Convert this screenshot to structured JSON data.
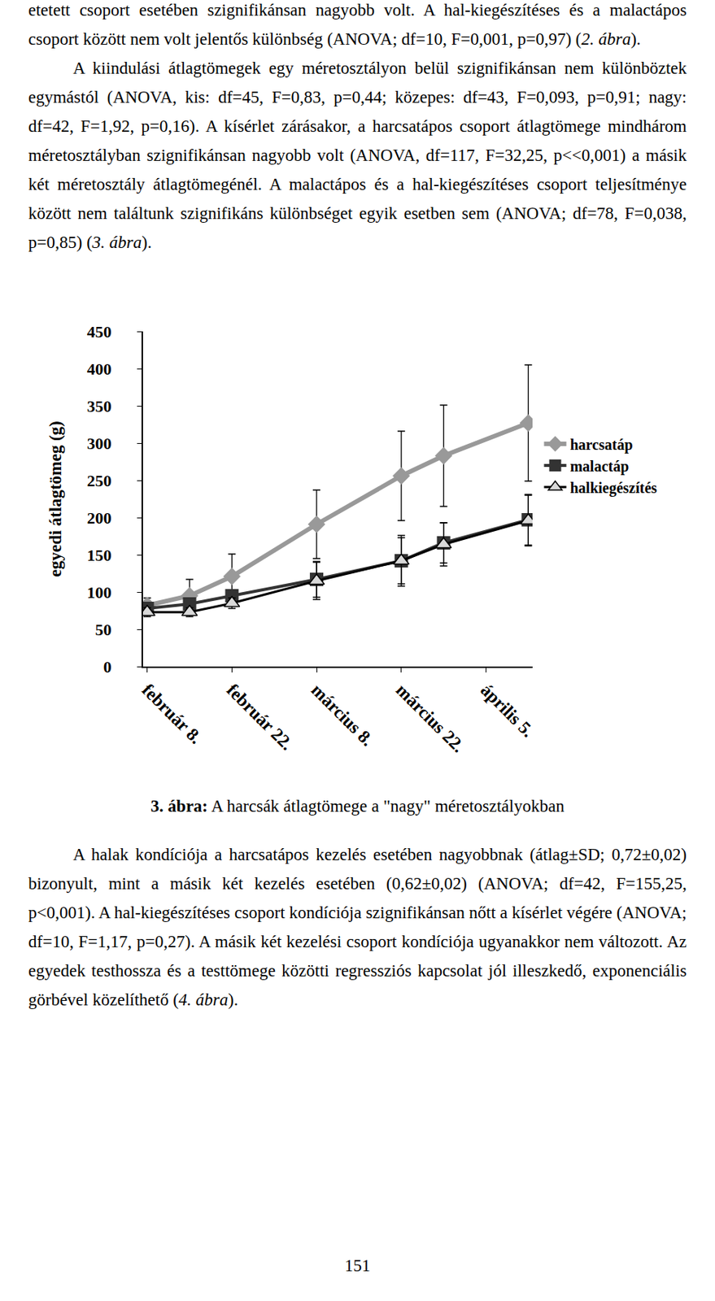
{
  "paragraphs_top": [
    [
      "etetett csoport esetében szignifikánsan nagyobb volt. A hal-kiegészítéses és a malactápos csoport között nem volt jelentős különbség (ANOVA; df=10, F=0,001, p=0,97) (",
      {
        "text": "2. ábra",
        "italic": true
      },
      ")."
    ],
    [
      "A kiindulási átlagtömegek egy méretosztályon belül szignifikánsan nem különböztek egymástól (ANOVA, kis: df=45, F=0,83, p=0,44; közepes: df=43, F=0,093, p=0,91; nagy: df=42, F=1,92, p=0,16). A kísérlet zárásakor, a harcsatápos csoport átlagtömege mindhárom méretosztályban szignifikánsan nagyobb volt (ANOVA, df=117, F=32,25, p<<0,001) a másik két méretosztály átlagtömegénél. A malactápos és a hal-kiegészítéses csoport teljesítménye között nem találtunk szignifikáns különbséget egyik esetben sem (ANOVA; df=78, F=0,038, p=0,85) (",
      {
        "text": "3. ábra",
        "italic": true
      },
      ")."
    ]
  ],
  "chart_data": {
    "type": "line",
    "y_label": "egyedi átlagtömeg (g)",
    "categories": [
      "február 8.",
      null,
      "február 22.",
      null,
      "március 8.",
      null,
      "március 22.",
      null,
      "április 5.",
      null
    ],
    "ylim": [
      0,
      450
    ],
    "yticks": [
      0,
      50,
      100,
      150,
      200,
      250,
      300,
      350,
      400,
      450
    ],
    "grid": false,
    "legend": "right",
    "series": [
      {
        "name": "harcsatáp",
        "color": "#999999",
        "marker": "diamond",
        "values": [
          82,
          95,
          121,
          null,
          191,
          null,
          256,
          283,
          null,
          327
        ],
        "errors": [
          10,
          22,
          30,
          null,
          46,
          null,
          60,
          68,
          null,
          78
        ]
      },
      {
        "name": "malactáp",
        "color": "#333333",
        "marker": "square",
        "values": [
          78,
          84,
          95,
          null,
          117,
          null,
          142,
          166,
          null,
          197
        ],
        "errors": [
          8,
          7,
          8,
          null,
          24,
          null,
          31,
          27,
          null,
          34
        ]
      },
      {
        "name": "halkiegészítés",
        "color": "#d9d9d9",
        "marker": "triangle-up",
        "values": [
          73,
          73,
          85,
          null,
          115,
          null,
          142,
          164,
          null,
          196
        ],
        "errors": [
          6,
          6,
          7,
          null,
          25,
          null,
          34,
          29,
          null,
          34
        ]
      }
    ]
  },
  "caption": [
    {
      "text": "3. ábra:",
      "bold": true
    },
    " A harcsák átlagtömege a \"nagy\" méretosztályokban"
  ],
  "paragraphs_bottom": [
    [
      "A halak kondíciója a harcsatápos kezelés esetében nagyobbnak (átlag±SD; 0,72±0,02) bizonyult, mint a másik két kezelés esetében (0,62±0,02) (ANOVA; df=42, F=155,25, p<0,001). A hal-kiegészítéses csoport kondíciója szignifikánsan nőtt a kísérlet végére (ANOVA; df=10, F=1,17, p=0,27). A másik két kezelési csoport kondíciója ugyanakkor nem változott. Az egyedek testhossza és a testtömege közötti regressziós kapcsolat jól illeszkedő, exponenciális görbével közelíthető (",
      {
        "text": "4. ábra",
        "italic": true
      },
      ")."
    ]
  ],
  "page_number": "151"
}
